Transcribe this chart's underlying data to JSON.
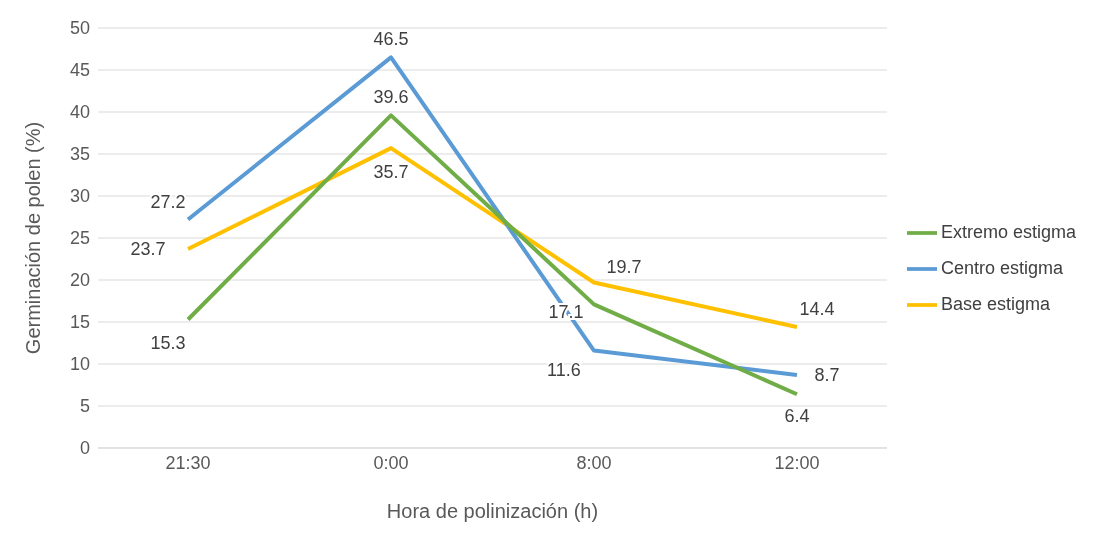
{
  "chart_data": {
    "type": "line",
    "xlabel": "Hora de polinización (h)",
    "ylabel": "Germinación de polen (%)",
    "categories": [
      "21:30",
      "0:00",
      "8:00",
      "12:00"
    ],
    "series": [
      {
        "name": "Extremo estigma",
        "color": "#70ad47",
        "values": [
          15.3,
          39.6,
          17.1,
          6.4
        ]
      },
      {
        "name": "Centro estigma",
        "color": "#5b9bd5",
        "values": [
          27.2,
          46.5,
          11.6,
          8.7
        ]
      },
      {
        "name": "Base estigma",
        "color": "#ffc000",
        "values": [
          23.7,
          35.7,
          19.7,
          14.4
        ]
      }
    ],
    "ylim": [
      0,
      50
    ],
    "yticks": [
      0,
      5,
      10,
      15,
      20,
      25,
      30,
      35,
      40,
      45,
      50
    ],
    "grid": "y",
    "legend": "right",
    "marker": "none",
    "line_style": "solid",
    "data_labels": true
  }
}
